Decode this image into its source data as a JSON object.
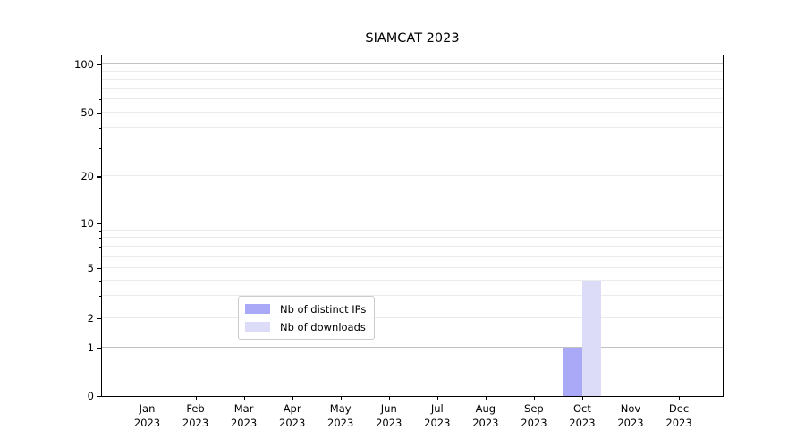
{
  "title": "SIAMCAT 2023",
  "chart_data": {
    "type": "bar",
    "title": "SIAMCAT 2023",
    "categories": [
      "Jan",
      "Feb",
      "Mar",
      "Apr",
      "May",
      "Jun",
      "Jul",
      "Aug",
      "Sep",
      "Oct",
      "Nov",
      "Dec"
    ],
    "category_year": "2023",
    "series": [
      {
        "name": "Nb of distinct IPs",
        "color": "#a9a9f7",
        "values": [
          0,
          0,
          0,
          0,
          0,
          0,
          0,
          0,
          0,
          1,
          0,
          0
        ]
      },
      {
        "name": "Nb of downloads",
        "color": "#dcdcf8",
        "values": [
          0,
          0,
          0,
          0,
          0,
          0,
          0,
          0,
          0,
          4,
          0,
          0
        ]
      }
    ],
    "xlabel": "",
    "ylabel": "",
    "y_scale": "symlog",
    "y_major_ticks": [
      0,
      1,
      2,
      5,
      10,
      20,
      50,
      100
    ],
    "y_minor_gridline_values": [
      3,
      4,
      6,
      7,
      8,
      9,
      30,
      40,
      60,
      70,
      80,
      90
    ],
    "y_major_gridline_values": [
      1,
      10,
      100
    ],
    "ylim": [
      0,
      130
    ],
    "grid": "horizontal, major and minor",
    "legend_position": "lower center",
    "legend": [
      "Nb of distinct IPs",
      "Nb of downloads"
    ]
  },
  "colors": {
    "bar_distinct_ips": "#a9a9f7",
    "bar_downloads": "#dcdcf8",
    "major_grid": "#c2c2c2",
    "minor_grid": "#ebebeb",
    "axis": "#000000",
    "background": "#ffffff"
  }
}
